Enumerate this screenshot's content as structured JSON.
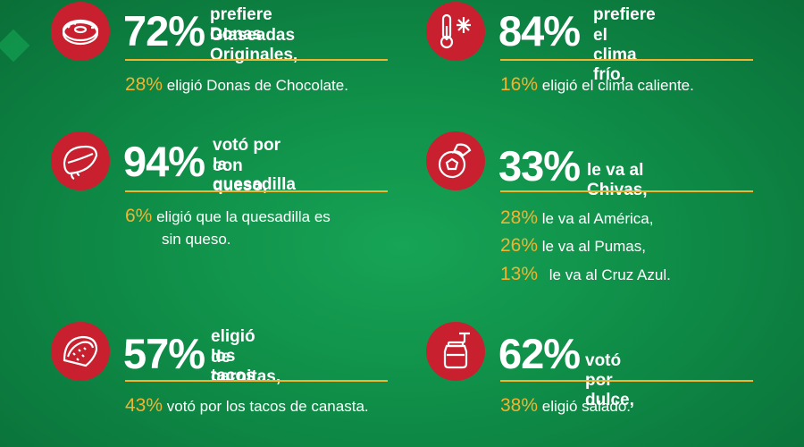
{
  "colors": {
    "background": "#109049",
    "accent": "#f2b331",
    "icon_circle": "#c8202e",
    "text": "#ffffff"
  },
  "items": [
    {
      "icon": "donut-icon",
      "main_pct": "72%",
      "main_line1": "prefiere Donas",
      "main_line2": "Glaseadas Originales,",
      "rows": [
        {
          "pct": "28%",
          "text": "eligió Donas de Chocolate."
        }
      ]
    },
    {
      "icon": "thermometer-snowflake-icon",
      "main_pct": "84%",
      "main_line1": "prefiere",
      "main_line2": "el clima frío,",
      "rows": [
        {
          "pct": "16%",
          "text": "eligió el clima caliente."
        }
      ]
    },
    {
      "icon": "quesadilla-icon",
      "main_pct": "94%",
      "main_line1": "votó por la quesadilla",
      "main_line2": "con queso,",
      "rows": [
        {
          "pct": "6%",
          "text": "eligió que la quesadilla es",
          "text2": "sin queso."
        }
      ]
    },
    {
      "icon": "soccer-ball-icon",
      "main_pct": "33%",
      "main_line1": "le va al Chivas,",
      "main_line2": "",
      "rows": [
        {
          "pct": "28%",
          "text": "le va al América,"
        },
        {
          "pct": "26%",
          "text": "le va al Pumas,"
        },
        {
          "pct": "13%",
          "text": "le va al Cruz Azul."
        }
      ]
    },
    {
      "icon": "taco-icon",
      "main_pct": "57%",
      "main_line1": "eligió los tacos",
      "main_line2": "de carnitas,",
      "rows": [
        {
          "pct": "43%",
          "text": "votó por los tacos de canasta."
        }
      ]
    },
    {
      "icon": "honey-jar-icon",
      "main_pct": "62%",
      "main_line1": "votó por dulce,",
      "main_line2": "",
      "rows": [
        {
          "pct": "38%",
          "text": "eligió salado."
        }
      ]
    }
  ]
}
